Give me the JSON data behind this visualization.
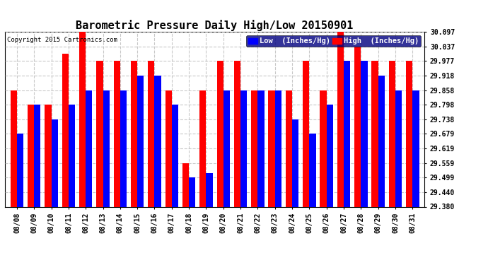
{
  "title": "Barometric Pressure Daily High/Low 20150901",
  "copyright": "Copyright 2015 Cartronics.com",
  "legend_low_label": "Low  (Inches/Hg)",
  "legend_high_label": "High  (Inches/Hg)",
  "dates": [
    "08/08",
    "08/09",
    "08/10",
    "08/11",
    "08/12",
    "08/13",
    "08/14",
    "08/15",
    "08/16",
    "08/17",
    "08/18",
    "08/19",
    "08/20",
    "08/21",
    "08/22",
    "08/23",
    "08/24",
    "08/25",
    "08/26",
    "08/27",
    "08/28",
    "08/29",
    "08/30",
    "08/31"
  ],
  "high_values": [
    29.858,
    29.798,
    29.798,
    30.007,
    30.097,
    29.977,
    29.977,
    29.977,
    29.977,
    29.858,
    29.559,
    29.858,
    29.977,
    29.977,
    29.858,
    29.858,
    29.858,
    29.977,
    29.858,
    30.097,
    30.037,
    29.977,
    29.977,
    29.977
  ],
  "low_values": [
    29.679,
    29.798,
    29.738,
    29.798,
    29.858,
    29.858,
    29.858,
    29.918,
    29.918,
    29.798,
    29.499,
    29.519,
    29.858,
    29.858,
    29.858,
    29.858,
    29.738,
    29.679,
    29.798,
    29.977,
    29.977,
    29.918,
    29.858,
    29.858
  ],
  "low_color": "#0000ff",
  "high_color": "#ff0000",
  "bg_color": "#ffffff",
  "plot_bg_color": "#ffffff",
  "ylim_min": 29.38,
  "ylim_max": 30.097,
  "yticks": [
    29.38,
    29.44,
    29.499,
    29.559,
    29.619,
    29.679,
    29.738,
    29.798,
    29.858,
    29.918,
    29.977,
    30.037,
    30.097
  ],
  "title_fontsize": 11,
  "copyright_fontsize": 6.5,
  "legend_fontsize": 7.5,
  "tick_fontsize": 7,
  "bar_width": 0.38,
  "grid_color": "#bbbbbb",
  "grid_style": "--",
  "grid_alpha": 0.8
}
